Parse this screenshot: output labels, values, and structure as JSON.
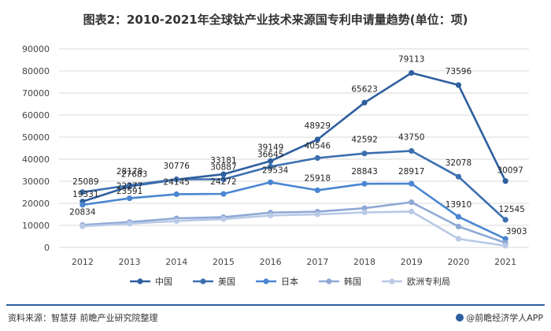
{
  "title": "图表2：2010-2021年全球钛产业技术来源国专利申请量趋势(单位：项)",
  "source": "资料来源：智慧芽 前瞻产业研究院整理",
  "brand": "@前瞻经济学人APP",
  "chart_data": {
    "type": "line",
    "title": "图表2：2010-2021年全球钛产业技术来源国专利申请量趋势(单位：项)",
    "xlabel": "",
    "ylabel": "",
    "categories": [
      "2012",
      "2013",
      "2014",
      "2015",
      "2016",
      "2017",
      "2018",
      "2019",
      "2020",
      "2021"
    ],
    "ylim": [
      0,
      90000
    ],
    "yticks": [
      0,
      10000,
      20000,
      30000,
      40000,
      50000,
      60000,
      70000,
      80000,
      90000
    ],
    "grid": true,
    "legend_position": "bottom",
    "series": [
      {
        "name": "中国",
        "color": "#2e5f9e",
        "values": [
          20834,
          27683,
          30776,
          33181,
          39149,
          48929,
          65623,
          79113,
          73596,
          30097
        ],
        "labels": [
          "20834",
          "27683",
          "30776",
          "33181",
          "39149",
          "48929",
          "65623",
          "79113",
          "73596",
          "30097"
        ]
      },
      {
        "name": "美国",
        "color": "#3c6fb0",
        "values": [
          25089,
          28178,
          30887,
          30887,
          36645,
          40546,
          42592,
          43750,
          32078,
          12545
        ],
        "labels": [
          "25089",
          "28178",
          "",
          "30887",
          "36645",
          "40546",
          "42592",
          "43750",
          "32078",
          "12545"
        ]
      },
      {
        "name": "日本",
        "color": "#4a86d1",
        "values": [
          19331,
          22277,
          24145,
          24272,
          29534,
          25918,
          28843,
          28917,
          13910,
          3903
        ],
        "labels": [
          "19331",
          "22277",
          "24145",
          "24272",
          "29534",
          "25918",
          "28843",
          "28917",
          "13910",
          "3903"
        ]
      },
      {
        "name": "韩国",
        "color": "#8fa9d6",
        "values": [
          10200,
          11500,
          13200,
          13700,
          15800,
          16200,
          17800,
          20500,
          9500,
          2100
        ]
      },
      {
        "name": "欧洲专利局",
        "color": "#b9c9e6",
        "values": [
          9600,
          10800,
          12000,
          12900,
          14500,
          15000,
          15900,
          16300,
          3900,
          800
        ]
      }
    ],
    "extra_labels": [
      "23591"
    ]
  }
}
